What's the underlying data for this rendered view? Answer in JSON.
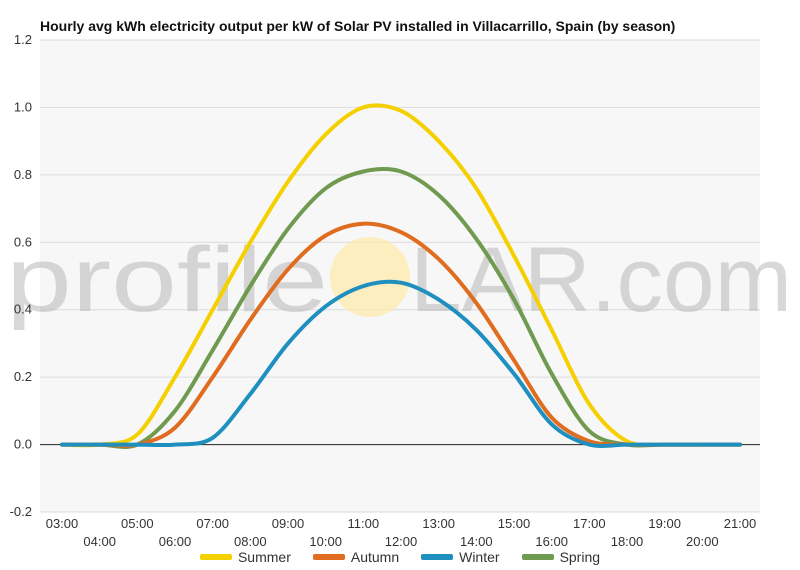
{
  "chart_data": {
    "type": "line",
    "title": "Hourly avg kWh electricity output per kW of Solar PV installed in Villacarrillo, Spain (by season)",
    "xlabel": "",
    "ylabel": "",
    "ylim": [
      -0.2,
      1.2
    ],
    "y_ticks": [
      "-0.2",
      "0.0",
      "0.2",
      "0.4",
      "0.6",
      "0.8",
      "1.0",
      "1.2"
    ],
    "x": [
      "03:00",
      "04:00",
      "05:00",
      "06:00",
      "07:00",
      "08:00",
      "09:00",
      "10:00",
      "11:00",
      "12:00",
      "13:00",
      "14:00",
      "15:00",
      "16:00",
      "17:00",
      "18:00",
      "19:00",
      "20:00",
      "21:00"
    ],
    "grid": true,
    "legend_position": "bottom",
    "series": [
      {
        "name": "Summer",
        "color": "#f5d000",
        "values": [
          0,
          0,
          0.03,
          0.2,
          0.4,
          0.6,
          0.78,
          0.92,
          1.0,
          0.99,
          0.9,
          0.76,
          0.56,
          0.34,
          0.12,
          0.01,
          0,
          0,
          0
        ]
      },
      {
        "name": "Autumn",
        "color": "#e06c1f",
        "values": [
          0,
          0,
          0,
          0.05,
          0.2,
          0.37,
          0.52,
          0.62,
          0.655,
          0.63,
          0.55,
          0.42,
          0.25,
          0.08,
          0.01,
          0,
          0,
          0,
          0
        ]
      },
      {
        "name": "Winter",
        "color": "#1f8fbf",
        "values": [
          0,
          0,
          0,
          0,
          0.02,
          0.15,
          0.3,
          0.41,
          0.47,
          0.48,
          0.43,
          0.34,
          0.21,
          0.06,
          0,
          0,
          0,
          0,
          0
        ]
      },
      {
        "name": "Spring",
        "color": "#6f9a4f",
        "values": [
          0,
          0,
          0,
          0.1,
          0.28,
          0.47,
          0.64,
          0.76,
          0.81,
          0.81,
          0.74,
          0.61,
          0.43,
          0.21,
          0.04,
          0,
          0,
          0,
          0
        ]
      }
    ]
  },
  "watermark": {
    "left": "profile",
    "right": "LAR.com",
    "sun_color": "#fde9a6"
  }
}
